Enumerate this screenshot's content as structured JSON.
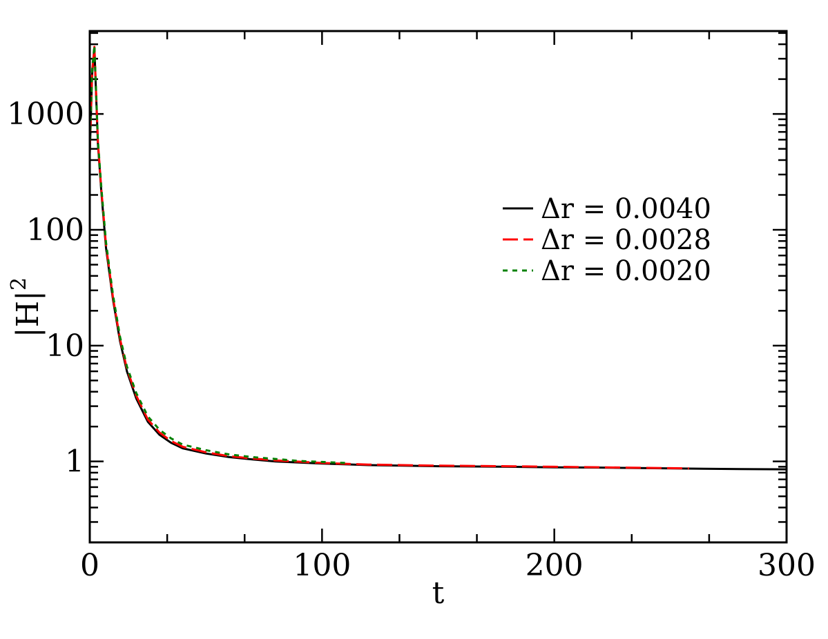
{
  "chart_data": {
    "type": "line",
    "xlabel": "t",
    "ylabel": "|H|",
    "ylabel_superscript": "2",
    "xlim": [
      0,
      300
    ],
    "ylim": [
      0.2,
      5200
    ],
    "yscale": "log",
    "xticks": [
      0,
      100,
      200,
      300
    ],
    "xtick_labels": [
      "0",
      "100",
      "200",
      "300"
    ],
    "yticks": [
      1,
      10,
      100,
      1000
    ],
    "ytick_labels": [
      "1",
      "10",
      "100",
      "1000"
    ],
    "legend_position": "right",
    "series": [
      {
        "name": "Δr = 0.0040",
        "color": "#000000",
        "dash": "solid",
        "x": [
          0,
          1,
          2,
          2.7,
          3.5,
          5,
          7,
          10,
          13,
          16,
          20,
          25,
          30,
          35,
          40,
          50,
          60,
          70,
          80,
          100,
          120,
          150,
          180,
          200,
          220,
          250,
          280,
          300
        ],
        "y": [
          450,
          2200,
          3700,
          1500,
          550,
          210,
          70,
          25,
          11,
          6.0,
          3.5,
          2.2,
          1.7,
          1.45,
          1.3,
          1.17,
          1.09,
          1.04,
          1.0,
          0.96,
          0.93,
          0.91,
          0.9,
          0.89,
          0.885,
          0.87,
          0.86,
          0.855
        ]
      },
      {
        "name": "Δr = 0.0028",
        "color": "#ff0000",
        "dash": "long-dash",
        "x": [
          0,
          1,
          2,
          2.7,
          3.5,
          5,
          7,
          10,
          13,
          16,
          20,
          25,
          30,
          35,
          40,
          50,
          60,
          70,
          80,
          100,
          120,
          150,
          180,
          200,
          220,
          250,
          258
        ],
        "y": [
          470,
          2300,
          3800,
          1550,
          570,
          220,
          74,
          26,
          11.5,
          6.3,
          3.7,
          2.3,
          1.78,
          1.5,
          1.34,
          1.2,
          1.11,
          1.06,
          1.02,
          0.97,
          0.94,
          0.92,
          0.91,
          0.9,
          0.89,
          0.875,
          0.87
        ]
      },
      {
        "name": "Δr = 0.0020",
        "color": "#008000",
        "dash": "dotted",
        "x": [
          0,
          1,
          2,
          2.7,
          3.5,
          5,
          7,
          10,
          13,
          16,
          20,
          25,
          30,
          35,
          40,
          50,
          60,
          70,
          80,
          90,
          100,
          110
        ],
        "y": [
          490,
          2400,
          3900,
          1600,
          590,
          230,
          78,
          27.5,
          12,
          6.6,
          3.9,
          2.45,
          1.88,
          1.58,
          1.4,
          1.25,
          1.15,
          1.09,
          1.05,
          1.01,
          0.99,
          0.97
        ]
      }
    ]
  }
}
